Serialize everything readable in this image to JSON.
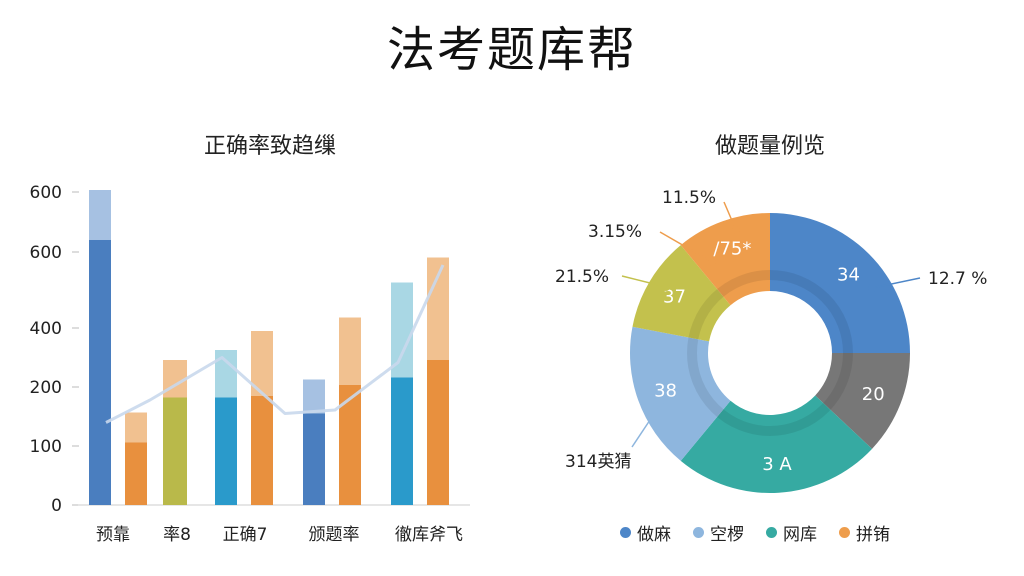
{
  "title": "法考题库帮",
  "chart_data": [
    {
      "type": "bar",
      "title": "正确率致趋缫",
      "y_tick_labels": [
        "600",
        "600",
        "400",
        "200",
        "100",
        "0"
      ],
      "categories": [
        "预靠",
        "率8",
        "正确7",
        "颁题率",
        "徹库斧飞"
      ],
      "groups": [
        {
          "bars": [
            {
              "segments": [
                {
                  "value": 530,
                  "color": "#4a7ebf"
                },
                {
                  "value": 100,
                  "color": "#a6c1e2"
                }
              ]
            },
            {
              "segments": [
                {
                  "value": 125,
                  "color": "#e8903e"
                },
                {
                  "value": 60,
                  "color": "#f1c190"
                }
              ]
            }
          ]
        },
        {
          "bars": [
            {
              "segments": [
                {
                  "value": 215,
                  "color": "#b9b94a"
                },
                {
                  "value": 75,
                  "color": "#f1c190"
                }
              ]
            }
          ]
        },
        {
          "bars": [
            {
              "segments": [
                {
                  "value": 215,
                  "color": "#2a9acb"
                },
                {
                  "value": 95,
                  "color": "#a9d7e4"
                }
              ]
            },
            {
              "segments": [
                {
                  "value": 218,
                  "color": "#e8903e"
                },
                {
                  "value": 130,
                  "color": "#f1c190"
                }
              ]
            }
          ]
        },
        {
          "bars": [
            {
              "segments": [
                {
                  "value": 183,
                  "color": "#4a7ebf"
                },
                {
                  "value": 68,
                  "color": "#a6c1e2"
                }
              ]
            },
            {
              "segments": [
                {
                  "value": 240,
                  "color": "#e8903e"
                },
                {
                  "value": 135,
                  "color": "#f1c190"
                }
              ]
            }
          ]
        },
        {
          "bars": [
            {
              "segments": [
                {
                  "value": 255,
                  "color": "#2a9acb"
                },
                {
                  "value": 190,
                  "color": "#a9d7e4"
                }
              ]
            },
            {
              "segments": [
                {
                  "value": 290,
                  "color": "#e8903e"
                },
                {
                  "value": 205,
                  "color": "#f1c190"
                }
              ]
            }
          ]
        }
      ],
      "trend_line": {
        "values": [
          165,
          210,
          295,
          183,
          190,
          285,
          480
        ],
        "color": "#c9d8ec"
      },
      "grid": false
    },
    {
      "type": "pie",
      "title": "做题量例览",
      "slices": [
        {
          "label": "34",
          "value": 25,
          "color": "#4d86c8"
        },
        {
          "label": "20",
          "value": 12,
          "color": "#777777"
        },
        {
          "label": "3 A",
          "value": 24,
          "color": "#36aaa2"
        },
        {
          "label": "38",
          "value": 17,
          "color": "#8eb6de"
        },
        {
          "label": "37",
          "value": 11,
          "color": "#c3c14d"
        },
        {
          "label": "/75*",
          "value": 11,
          "color": "#ee9d4c"
        }
      ],
      "callouts": [
        {
          "text": "12.7 %",
          "color": "#4d86c8"
        },
        {
          "text": "314英猜",
          "color": "#8eb6de"
        },
        {
          "text": "21.5%",
          "color": "#c3c14d"
        },
        {
          "text": "3.15%",
          "color": "#ee9d4c"
        },
        {
          "text": "11.5%",
          "color": "#ee9d4c"
        }
      ],
      "legend": [
        {
          "label": "做麻",
          "color": "#4d86c8"
        },
        {
          "label": "空椤",
          "color": "#8eb6de"
        },
        {
          "label": "网库",
          "color": "#36aaa2"
        },
        {
          "label": "拼铕",
          "color": "#ee9d4c"
        }
      ]
    }
  ]
}
